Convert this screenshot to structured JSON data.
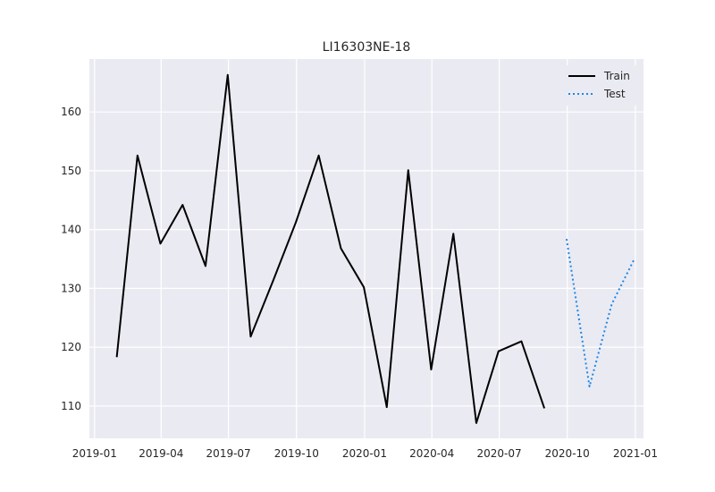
{
  "chart_data": {
    "type": "line",
    "title": "LI16303NE-18",
    "xlabel": "",
    "ylabel": "",
    "grid": true,
    "legend_position": "top-right",
    "x_ticks": [
      "2019-01",
      "2019-04",
      "2019-07",
      "2019-10",
      "2020-01",
      "2020-04",
      "2020-07",
      "2020-10",
      "2021-01"
    ],
    "y_ticks": [
      110,
      120,
      130,
      140,
      150,
      160
    ],
    "xlim": [
      "2018-12-25",
      "2021-01-12"
    ],
    "ylim": [
      104.5,
      169
    ],
    "series": [
      {
        "name": "Train",
        "color": "#000000",
        "style": "solid",
        "x": [
          "2019-01-31",
          "2019-02-28",
          "2019-03-31",
          "2019-04-30",
          "2019-05-31",
          "2019-06-30",
          "2019-07-31",
          "2019-08-31",
          "2019-09-30",
          "2019-10-31",
          "2019-11-30",
          "2019-12-31",
          "2020-01-31",
          "2020-02-29",
          "2020-03-31",
          "2020-04-30",
          "2020-05-31",
          "2020-06-30",
          "2020-07-31",
          "2020-08-31"
        ],
        "values": [
          118.3,
          152.6,
          137.6,
          144.2,
          133.8,
          166.3,
          121.8,
          131.5,
          141.2,
          152.6,
          136.8,
          130.2,
          109.8,
          150.1,
          116.2,
          139.3,
          107.1,
          119.3,
          121.0,
          109.6
        ]
      },
      {
        "name": "Test",
        "color": "#1e88e5",
        "style": "dotted",
        "x": [
          "2020-09-30",
          "2020-10-31",
          "2020-11-30",
          "2020-12-31"
        ],
        "values": [
          138.4,
          113.3,
          127.3,
          135.1
        ]
      }
    ]
  }
}
